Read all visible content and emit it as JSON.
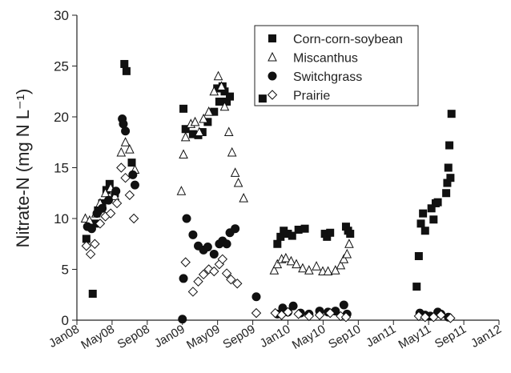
{
  "chart_data": {
    "type": "scatter",
    "y_label": "Nitrate-N (mg N L⁻¹)",
    "xlim": [
      2008,
      2012
    ],
    "xticks": [
      {
        "value": 2008,
        "label": "Jan08"
      },
      {
        "value": 2008.3333,
        "label": "May08"
      },
      {
        "value": 2008.6667,
        "label": "Sep08"
      },
      {
        "value": 2009,
        "label": "Jan09"
      },
      {
        "value": 2009.3333,
        "label": "May09"
      },
      {
        "value": 2009.6667,
        "label": "Sep09"
      },
      {
        "value": 2010,
        "label": "Jan10"
      },
      {
        "value": 2010.3333,
        "label": "May10"
      },
      {
        "value": 2010.6667,
        "label": "Sep10"
      },
      {
        "value": 2011,
        "label": "Jan11"
      },
      {
        "value": 2011.3333,
        "label": "May11"
      },
      {
        "value": 2011.6667,
        "label": "Sep11"
      },
      {
        "value": 2012,
        "label": "Jan12"
      }
    ],
    "ylim": [
      0,
      30
    ],
    "yticks": [
      0,
      5,
      10,
      15,
      20,
      25,
      30
    ],
    "legend": "top-right",
    "series": [
      {
        "name": "Corn-corn-soybean",
        "color": "#111111",
        "marker": "square",
        "filled": true,
        "x": [
          2008.15,
          2008.09,
          2008.17,
          2008.2,
          2008.24,
          2008.28,
          2008.31,
          2008.36,
          2008.45,
          2008.47,
          2008.52,
          2009.01,
          2009.03,
          2009.1,
          2009.15,
          2009.19,
          2009.24,
          2009.3,
          2009.33,
          2009.35,
          2009.38,
          2009.4,
          2009.42,
          2009.45,
          2009.76,
          2009.9,
          2009.93,
          2009.96,
          2010.0,
          2010.04,
          2010.1,
          2010.16,
          2010.35,
          2010.37,
          2010.4,
          2010.55,
          2010.57,
          2010.59,
          2011.22,
          2011.24,
          2011.26,
          2011.28,
          2011.3,
          2011.36,
          2011.38,
          2011.4,
          2011.42,
          2011.5,
          2011.51,
          2011.52,
          2011.53,
          2011.55,
          2011.54
        ],
        "values": [
          2.6,
          8,
          9.5,
          10.8,
          11.5,
          12.8,
          13.4,
          12.5,
          25.2,
          24.5,
          15.5,
          20.8,
          18.8,
          18.3,
          18.2,
          18.5,
          19.5,
          20.5,
          22.8,
          21.5,
          23,
          22.5,
          21.5,
          22,
          21.8,
          7.5,
          8.2,
          8.8,
          8.5,
          8.3,
          8.9,
          9,
          8.5,
          8.2,
          8.6,
          9.2,
          8.8,
          8.5,
          3.3,
          6.3,
          9.5,
          10.5,
          8.8,
          11,
          9.9,
          11.5,
          11.6,
          12.5,
          13.5,
          15,
          17.2,
          20.3,
          14
        ]
      },
      {
        "name": "Miscanthus",
        "color": "#111111",
        "marker": "triangle",
        "filled": false,
        "x": [
          2008.08,
          2008.12,
          2008.18,
          2008.22,
          2008.27,
          2008.32,
          2008.36,
          2008.42,
          2008.46,
          2008.5,
          2008.55,
          2008.99,
          2009.01,
          2009.03,
          2009.08,
          2009.12,
          2009.16,
          2009.2,
          2009.25,
          2009.3,
          2009.34,
          2009.37,
          2009.4,
          2009.44,
          2009.47,
          2009.5,
          2009.53,
          2009.58,
          2009.87,
          2009.9,
          2009.94,
          2009.98,
          2010.03,
          2010.08,
          2010.14,
          2010.2,
          2010.27,
          2010.33,
          2010.38,
          2010.45,
          2010.5,
          2010.53,
          2010.56,
          2010.58
        ],
        "values": [
          10,
          9.8,
          10.5,
          11.5,
          12.5,
          13,
          12.2,
          16.5,
          17.5,
          16.8,
          14.8,
          12.7,
          16.3,
          18,
          19.3,
          19.5,
          18.5,
          19.8,
          20.5,
          22.5,
          24,
          23,
          21,
          18.5,
          16.5,
          14.5,
          13.5,
          12,
          4.9,
          5.5,
          6,
          6.1,
          5.8,
          5.5,
          5.1,
          4.9,
          5.3,
          4.8,
          4.8,
          4.9,
          5.4,
          6,
          6.5,
          7.5
        ]
      },
      {
        "name": "Switchgrass",
        "color": "#111111",
        "marker": "circle",
        "filled": true,
        "x": [
          2008.1,
          2008.14,
          2008.19,
          2008.24,
          2008.3,
          2008.37,
          2008.43,
          2008.44,
          2008.46,
          2008.53,
          2008.55,
          2009.0,
          2009.01,
          2009.04,
          2009.1,
          2009.15,
          2009.2,
          2009.24,
          2009.3,
          2009.35,
          2009.38,
          2009.42,
          2009.45,
          2009.5,
          2009.7,
          2009.9,
          2009.95,
          2010.0,
          2010.05,
          2010.12,
          2010.2,
          2010.3,
          2010.38,
          2010.45,
          2010.53,
          2010.56,
          2011.25,
          2011.3,
          2011.35,
          2011.42,
          2011.45,
          2011.52
        ],
        "values": [
          9.2,
          9,
          10.5,
          11,
          11.8,
          12.7,
          19.8,
          19.3,
          18.6,
          14.3,
          13.3,
          0.1,
          4.1,
          10,
          8.4,
          7.3,
          6.9,
          7.2,
          6.5,
          7.5,
          7.8,
          7.5,
          8.6,
          9,
          2.3,
          0.6,
          1.2,
          0.8,
          1.4,
          0.7,
          0.6,
          0.9,
          0.8,
          0.9,
          1.5,
          0.6,
          0.7,
          0.5,
          0.4,
          0.8,
          0.6,
          0.3
        ]
      },
      {
        "name": "Prairie",
        "color": "#111111",
        "marker": "diamond",
        "filled": false,
        "x": [
          2008.09,
          2008.13,
          2008.17,
          2008.22,
          2008.27,
          2008.32,
          2008.38,
          2008.42,
          2008.46,
          2008.5,
          2008.54,
          2009.03,
          2009.1,
          2009.15,
          2009.2,
          2009.25,
          2009.3,
          2009.35,
          2009.38,
          2009.42,
          2009.46,
          2009.52,
          2009.7,
          2009.88,
          2009.94,
          2010.0,
          2010.1,
          2010.2,
          2010.3,
          2010.4,
          2010.5,
          2010.55,
          2011.24,
          2011.3,
          2011.38,
          2011.45,
          2011.54
        ],
        "values": [
          7.3,
          6.5,
          7.5,
          9.5,
          10.2,
          10.5,
          11.5,
          15,
          14,
          12.3,
          10,
          5.7,
          2.8,
          3.8,
          4.5,
          5,
          4.8,
          5.5,
          6,
          4.6,
          4,
          3.6,
          0.7,
          0.7,
          0.5,
          0.8,
          0.6,
          0.4,
          0.5,
          0.7,
          0.4,
          0.3,
          0.4,
          0.3,
          0.3,
          0.5,
          0.2
        ]
      }
    ]
  }
}
